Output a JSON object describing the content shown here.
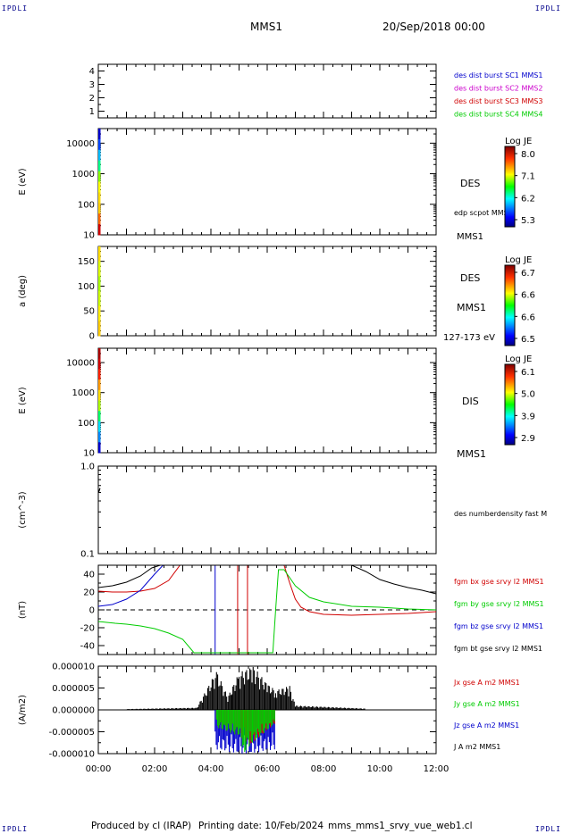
{
  "corners": {
    "tl": "IPDLI",
    "tr": "IPDLI",
    "bl": "IPDLI",
    "br": "IPDLI"
  },
  "header": {
    "spacecraft": "MMS1",
    "date": "20/Sep/2018 00:00"
  },
  "footer": {
    "producer": "Produced by cl (IRAP)",
    "printing": "Printing date: 10/Feb/2024",
    "file": "mms_mms1_srvy_vue_web1.cl"
  },
  "x_axis": {
    "range_hours": [
      0,
      12
    ],
    "tick_labels": [
      "00:00",
      "02:00",
      "04:00",
      "06:00",
      "08:00",
      "10:00",
      "12:00"
    ]
  },
  "colors": {
    "red": "#d00000",
    "magenta": "#cc00cc",
    "green": "#00cc00",
    "blue": "#0000cc",
    "black": "#000000"
  },
  "panels": {
    "burst": {
      "y_ticks": [
        "1",
        "2",
        "3",
        "4"
      ],
      "legend": [
        {
          "text": "des dist burst SC1 MMS1",
          "color": "#0000cc"
        },
        {
          "text": "des dist burst SC2 MMS2",
          "color": "#cc00cc"
        },
        {
          "text": "des dist burst SC3 MMS3",
          "color": "#d00000"
        },
        {
          "text": "des dist burst SC4 MMS4",
          "color": "#00cc00"
        }
      ]
    },
    "des_energy": {
      "ylabel": "E (eV)",
      "y_ticks": [
        "10",
        "100",
        "1000",
        "10000"
      ],
      "instrument": "DES",
      "overlay": "edp scpot MMS1",
      "spacecraft": "MMS1",
      "colorbar": {
        "title": "Log JE",
        "ticks": [
          "8.0",
          "7.1",
          "6.2",
          "5.3"
        ]
      }
    },
    "des_pitch": {
      "ylabel": "a (deg)",
      "y_ticks": [
        "0",
        "50",
        "100",
        "150"
      ],
      "instrument": "DES",
      "spacecraft": "MMS1",
      "energy_range": "127-173 eV",
      "colorbar": {
        "title": "Log JE",
        "ticks": [
          "6.7",
          "6.6",
          "6.6",
          "6.5"
        ]
      }
    },
    "dis_energy": {
      "ylabel": "E (eV)",
      "y_ticks": [
        "10",
        "100",
        "1000",
        "10000"
      ],
      "instrument": "DIS",
      "spacecraft": "MMS1",
      "colorbar": {
        "title": "Log JE",
        "ticks": [
          "6.1",
          "5.0",
          "3.9",
          "2.9"
        ]
      }
    },
    "density": {
      "ylabel": "(cm^-3)",
      "y_ticks": [
        "0.1",
        "1.0"
      ],
      "legend": "des numberdensity fast M"
    },
    "bfield": {
      "ylabel": "(nT)",
      "y_ticks": [
        "-40",
        "-20",
        "0",
        "20",
        "40"
      ],
      "legend": [
        {
          "text": "fgm bx gse srvy l2 MMS1",
          "color": "#d00000"
        },
        {
          "text": "fgm by gse srvy l2 MMS1",
          "color": "#00cc00"
        },
        {
          "text": "fgm bz gse srvy l2 MMS1",
          "color": "#0000cc"
        },
        {
          "text": "fgm bt gse srvy l2 MMS1",
          "color": "#000000"
        }
      ]
    },
    "current": {
      "ylabel": "(A/m2)",
      "y_ticks": [
        "-0.000010",
        "-0.000005",
        "0.000000",
        "0.000005",
        "0.000010"
      ],
      "legend": [
        {
          "text": "Jx gse A m2 MMS1",
          "color": "#d00000"
        },
        {
          "text": "Jy gse A m2 MMS1",
          "color": "#00cc00"
        },
        {
          "text": "Jz gse A m2 MMS1",
          "color": "#0000cc"
        },
        {
          "text": "J A m2 MMS1",
          "color": "#000000"
        }
      ]
    }
  },
  "chart_data": [
    {
      "type": "line",
      "title": "",
      "xlabel": "",
      "ylabel": "",
      "x_units": "hours UT",
      "xlim": [
        0,
        12
      ],
      "ylim": [
        0.5,
        4.5
      ],
      "series": []
    },
    {
      "type": "heatmap",
      "ylabel": "E (eV)",
      "y_scale": "log",
      "ylim": [
        10,
        30000
      ],
      "xlim": [
        0,
        12
      ],
      "note_visible_data_x_hours": [
        0,
        0.05
      ],
      "colorbar_range": [
        5.3,
        8.0
      ]
    },
    {
      "type": "heatmap",
      "ylabel": "a (deg)",
      "ylim": [
        0,
        180
      ],
      "xlim": [
        0,
        12
      ],
      "note_visible_data_x_hours": [
        0,
        0.05
      ],
      "colorbar_range": [
        6.5,
        6.7
      ]
    },
    {
      "type": "heatmap",
      "ylabel": "E (eV)",
      "y_scale": "log",
      "ylim": [
        10,
        30000
      ],
      "xlim": [
        0,
        12
      ],
      "note_visible_data_x_hours": [
        0,
        0.05
      ],
      "colorbar_range": [
        2.9,
        6.1
      ]
    },
    {
      "type": "line",
      "ylabel": "(cm^-3)",
      "y_scale": "log",
      "ylim": [
        0.1,
        1.0
      ],
      "xlim": [
        0,
        12
      ],
      "series": [
        {
          "name": "des numberdensity fast M",
          "x": [
            0,
            0.03,
            0.06
          ],
          "y": [
            0.5,
            0.52,
            0.56
          ]
        }
      ]
    },
    {
      "type": "line",
      "ylabel": "(nT)",
      "ylim": [
        -50,
        50
      ],
      "xlim": [
        0,
        12
      ],
      "series": [
        {
          "name": "fgm bx gse srvy l2 MMS1",
          "x": [
            0,
            0.5,
            1.0,
            1.5,
            2.0,
            2.5,
            2.9,
            5.0,
            5.4,
            6.6,
            6.8,
            7.0,
            7.2,
            7.5,
            8.0,
            9.0,
            10.0,
            11.0,
            12.0
          ],
          "y": [
            21,
            20,
            20,
            21,
            24,
            33,
            50,
            50,
            50,
            50,
            30,
            12,
            3,
            -2,
            -5,
            -6,
            -5,
            -4,
            -2
          ]
        },
        {
          "name": "fgm by gse srvy l2 MMS1",
          "x": [
            0,
            0.3,
            0.6,
            1.0,
            1.5,
            2.0,
            2.5,
            3.0,
            3.4,
            6.2,
            6.3,
            6.4,
            6.6,
            6.8,
            7.0,
            7.5,
            8.0,
            9.0,
            10.0,
            11.0,
            12.0
          ],
          "y": [
            -13,
            -14,
            -15,
            -16,
            -18,
            -21,
            -26,
            -33,
            -48,
            -48,
            0,
            45,
            45,
            36,
            27,
            14,
            9,
            4,
            3,
            1,
            0
          ]
        },
        {
          "name": "fgm bz gse srvy l2 MMS1",
          "x": [
            0,
            0.5,
            1.0,
            1.5,
            2.0,
            2.3
          ],
          "y": [
            4,
            6,
            12,
            22,
            40,
            50
          ]
        },
        {
          "name": "fgm bt gse srvy l2 MMS1",
          "x": [
            0,
            0.5,
            1.0,
            1.5,
            1.9,
            2.2,
            9.0,
            9.5,
            10.0,
            10.5,
            11.0,
            11.5,
            12.0
          ],
          "y": [
            25,
            27,
            31,
            38,
            47,
            50,
            50,
            43,
            34,
            29,
            25,
            22,
            18
          ]
        }
      ],
      "spikes": [
        {
          "x": 4.15,
          "color": "blue"
        },
        {
          "x": 4.95,
          "color": "red"
        },
        {
          "x": 5.3,
          "color": "red"
        }
      ]
    },
    {
      "type": "line",
      "ylabel": "(A/m2)",
      "ylim": [
        -1e-05,
        1e-05
      ],
      "xlim": [
        0,
        12
      ],
      "series": [
        {
          "name": "J A m2 MMS1",
          "x": [
            1.0,
            3.5,
            4.2,
            4.6,
            5.0,
            5.5,
            6.0,
            6.3,
            6.8,
            7.0,
            9.5
          ],
          "y": [
            2e-07,
            5e-07,
            9e-06,
            3e-06,
            8.5e-06,
            1e-05,
            6e-06,
            4.5e-06,
            5.5e-06,
            1e-06,
            3e-07
          ]
        },
        {
          "name": "Jx gse A m2 MMS1",
          "x": [
            4.2,
            5.0,
            5.4,
            6.3
          ],
          "y": [
            -4e-06,
            -6e-06,
            -8e-06,
            -3e-06
          ]
        },
        {
          "name": "Jy gse A m2 MMS1",
          "x": [
            4.2,
            5.0,
            5.2,
            5.4,
            6.3
          ],
          "y": [
            -4e-06,
            -6e-06,
            -1e-05,
            -8e-06,
            -3e-06
          ]
        },
        {
          "name": "Jz gse A m2 MMS1",
          "x": [
            4.15,
            5.0,
            5.4,
            6.3
          ],
          "y": [
            -9e-06,
            -1e-05,
            -1e-05,
            -9e-06
          ]
        }
      ]
    }
  ]
}
